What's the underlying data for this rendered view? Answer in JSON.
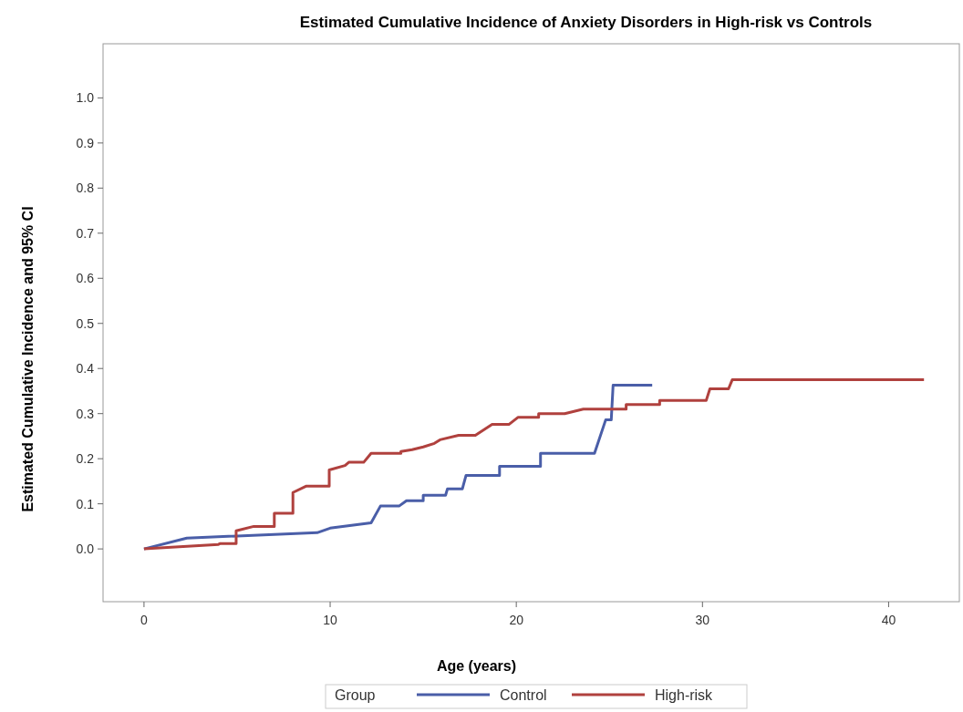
{
  "chart_data": {
    "type": "line",
    "title": "Estimated Cumulative Incidence of Anxiety Disorders in High-risk vs Controls",
    "xlabel": "Age (years)",
    "ylabel": "Estimated Cumulative Incidence and 95% CI",
    "legend_title": "Group",
    "legend": "bottom",
    "grid": false,
    "line_style": "solid",
    "marker": "none",
    "xlim": [
      -2.2,
      43.8
    ],
    "xticks": [
      0,
      10,
      20,
      30,
      40
    ],
    "ylim": [
      -0.117,
      1.12
    ],
    "yticks": [
      {
        "value": 0,
        "label": "0.0"
      },
      {
        "value": 0.1,
        "label": "0.1"
      },
      {
        "value": 0.2,
        "label": "0.2"
      },
      {
        "value": 0.3,
        "label": "0.3"
      },
      {
        "value": 0.4,
        "label": "0.4"
      },
      {
        "value": 0.5,
        "label": "0.5"
      },
      {
        "value": 0.6,
        "label": "0.6"
      },
      {
        "value": 0.7,
        "label": "0.7"
      },
      {
        "value": 0.8,
        "label": "0.8"
      },
      {
        "value": 0.9,
        "label": "0.9"
      },
      {
        "value": 1,
        "label": "1.0"
      }
    ],
    "series": [
      {
        "name": "Control",
        "color": "#4a5ea8",
        "x": [
          0,
          2.3,
          9.3,
          10.0,
          12.2,
          12.7,
          13.7,
          14.1,
          15.0,
          15.0,
          16.2,
          16.3,
          17.1,
          17.3,
          19.1,
          19.1,
          21.3,
          21.3,
          24.2,
          24.8,
          25.1,
          25.2,
          27.3
        ],
        "values": [
          0,
          0.024,
          0.036,
          0.046,
          0.058,
          0.095,
          0.095,
          0.107,
          0.107,
          0.119,
          0.119,
          0.133,
          0.133,
          0.163,
          0.163,
          0.183,
          0.183,
          0.212,
          0.212,
          0.286,
          0.286,
          0.363,
          0.363
        ]
      },
      {
        "name": "High-risk",
        "color": "#b0413e",
        "x": [
          0,
          4.0,
          4.1,
          4.95,
          4.95,
          5.9,
          7.0,
          7.0,
          8.0,
          8.0,
          8.7,
          9.95,
          9.95,
          10.8,
          11.0,
          11.8,
          12.2,
          13.8,
          13.8,
          14.4,
          15.0,
          15.6,
          15.9,
          16.9,
          17.8,
          18.7,
          19.6,
          20.1,
          21.2,
          21.2,
          22.6,
          23.6,
          25.9,
          25.9,
          27.7,
          27.7,
          30.2,
          30.4,
          31.4,
          31.6,
          41.9
        ],
        "values": [
          0,
          0.01,
          0.012,
          0.012,
          0.04,
          0.05,
          0.05,
          0.079,
          0.079,
          0.125,
          0.139,
          0.139,
          0.175,
          0.185,
          0.192,
          0.192,
          0.212,
          0.212,
          0.216,
          0.22,
          0.226,
          0.234,
          0.242,
          0.252,
          0.252,
          0.276,
          0.276,
          0.292,
          0.292,
          0.3,
          0.3,
          0.31,
          0.31,
          0.32,
          0.32,
          0.329,
          0.329,
          0.355,
          0.355,
          0.375,
          0.375
        ]
      }
    ]
  }
}
